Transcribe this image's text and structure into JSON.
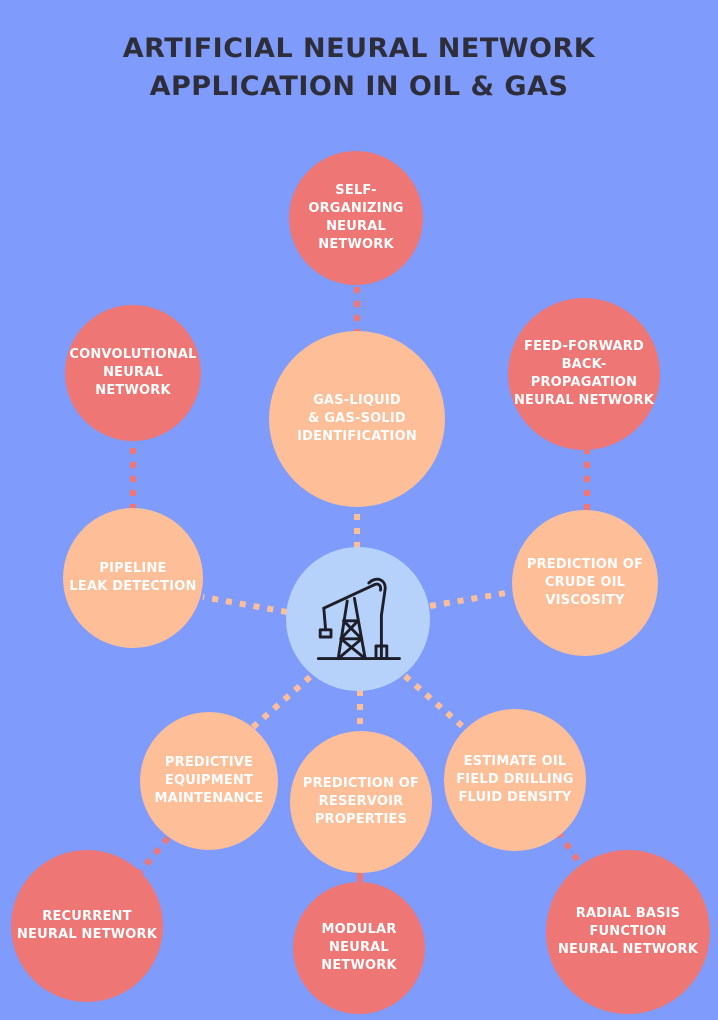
{
  "title": {
    "line1": "ARTIFICIAL NEURAL NETWORK",
    "line2": "APPLICATION IN OIL & GAS"
  },
  "colors": {
    "background": "#7F9BFB",
    "application_circle": "#FEBE98",
    "network_circle": "#EE7674",
    "center_circle": "#B6D2FB",
    "connector": "#FEBE98"
  },
  "center": {
    "icon": "oil-pump-jack-icon"
  },
  "applications": {
    "gas_liquid": [
      "GAS-LIQUID",
      "& GAS-SOLID",
      "IDENTIFICATION"
    ],
    "pipeline": [
      "PIPELINE",
      "LEAK DETECTION"
    ],
    "viscosity": [
      "PREDICTION OF",
      "CRUDE OIL",
      "VISCOSITY"
    ],
    "maintenance": [
      "PREDICTIVE",
      "EQUIPMENT",
      "MAINTENANCE"
    ],
    "reservoir": [
      "PREDICTION OF",
      "RESERVOIR",
      "PROPERTIES"
    ],
    "drilling": [
      "ESTIMATE OIL",
      "FIELD DRILLING",
      "FLUID DENSITY"
    ]
  },
  "networks": {
    "self_organizing": [
      "SELF-ORGANIZING",
      "NEURAL NETWORK"
    ],
    "convolutional": [
      "CONVOLUTIONAL",
      "NEURAL NETWORK"
    ],
    "feed_forward": [
      "FEED-FORWARD",
      "BACK-PROPAGATION",
      "NEURAL NETWORK"
    ],
    "recurrent": [
      "RECURRENT",
      "NEURAL NETWORK"
    ],
    "modular": [
      "MODULAR",
      "NEURAL",
      "NETWORK"
    ],
    "radial_basis": [
      "RADIAL BASIS",
      "FUNCTION",
      "NEURAL NETWORK"
    ]
  }
}
